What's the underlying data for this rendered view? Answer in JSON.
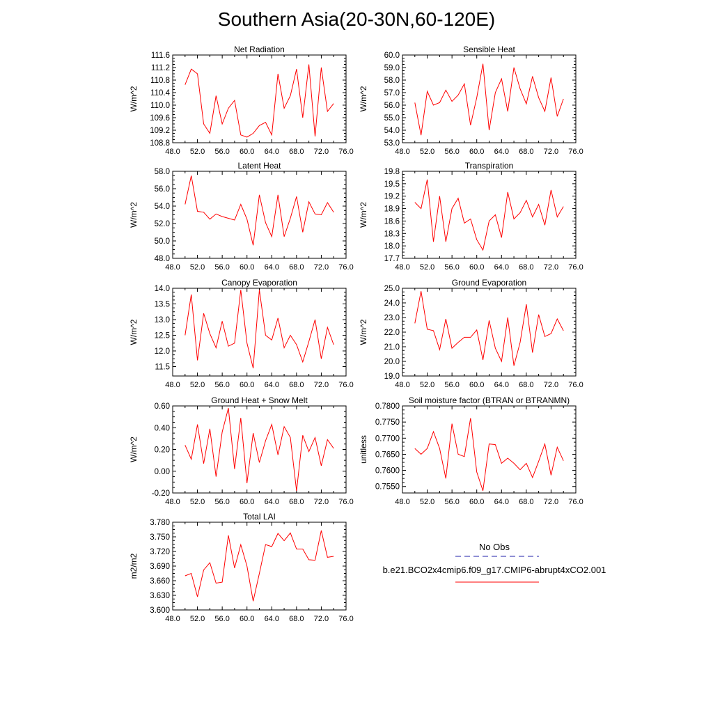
{
  "title": "Southern Asia(20-30N,60-120E)",
  "colors": {
    "series": "#ff0000",
    "obs": "#1f1fa8",
    "axis": "#000000"
  },
  "legend": {
    "obs_label": "No Obs",
    "case_label": "b.e21.BCO2x4cmip6.f09_g17.CMIP6-abrupt4xCO2.001",
    "obs_style": "dashed",
    "case_style": "solid"
  },
  "chart_data": [
    {
      "type": "line",
      "title": "Net Radiation",
      "xlabel": "",
      "ylabel": "W/m^2",
      "xlim": [
        48,
        76
      ],
      "ylim": [
        108.8,
        111.6
      ],
      "xticks": [
        "48.0",
        "52.0",
        "56.0",
        "60.0",
        "64.0",
        "68.0",
        "72.0",
        "76.0"
      ],
      "yticks": [
        "108.8",
        "109.2",
        "109.6",
        "110.0",
        "110.4",
        "110.8",
        "111.2",
        "111.6"
      ],
      "x": [
        50,
        51,
        52,
        53,
        54,
        55,
        56,
        57,
        58,
        59,
        60,
        61,
        62,
        63,
        64,
        65,
        66,
        67,
        68,
        69,
        70,
        71,
        72,
        73,
        74
      ],
      "values": [
        110.65,
        111.15,
        111.0,
        109.4,
        109.1,
        110.3,
        109.4,
        109.9,
        110.15,
        109.05,
        108.98,
        109.1,
        109.35,
        109.45,
        109.05,
        111.0,
        109.9,
        110.3,
        111.15,
        109.6,
        111.3,
        109.0,
        111.2,
        109.8,
        110.05
      ]
    },
    {
      "type": "line",
      "title": "Sensible Heat",
      "xlabel": "",
      "ylabel": "W/m^2",
      "xlim": [
        48,
        76
      ],
      "ylim": [
        53.0,
        60.0
      ],
      "xticks": [
        "48.0",
        "52.0",
        "56.0",
        "60.0",
        "64.0",
        "68.0",
        "72.0",
        "76.0"
      ],
      "yticks": [
        "53.0",
        "54.0",
        "55.0",
        "56.0",
        "57.0",
        "58.0",
        "59.0",
        "60.0"
      ],
      "x": [
        50,
        51,
        52,
        53,
        54,
        55,
        56,
        57,
        58,
        59,
        60,
        61,
        62,
        63,
        64,
        65,
        66,
        67,
        68,
        69,
        70,
        71,
        72,
        73,
        74
      ],
      "values": [
        56.2,
        53.6,
        57.1,
        56.0,
        56.2,
        57.2,
        56.3,
        56.8,
        57.7,
        54.4,
        56.6,
        59.3,
        54.0,
        57.0,
        58.1,
        55.5,
        59.0,
        57.3,
        56.1,
        58.3,
        56.6,
        55.5,
        58.2,
        55.1,
        56.5
      ]
    },
    {
      "type": "line",
      "title": "Latent Heat",
      "xlabel": "",
      "ylabel": "W/m^2",
      "xlim": [
        48,
        76
      ],
      "ylim": [
        48.0,
        58.0
      ],
      "xticks": [
        "48.0",
        "52.0",
        "56.0",
        "60.0",
        "64.0",
        "68.0",
        "72.0",
        "76.0"
      ],
      "yticks": [
        "48.0",
        "50.0",
        "52.0",
        "54.0",
        "56.0",
        "58.0"
      ],
      "x": [
        50,
        51,
        52,
        53,
        54,
        55,
        56,
        57,
        58,
        59,
        60,
        61,
        62,
        63,
        64,
        65,
        66,
        67,
        68,
        69,
        70,
        71,
        72,
        73,
        74
      ],
      "values": [
        54.2,
        57.5,
        53.4,
        53.3,
        52.5,
        53.1,
        52.8,
        52.6,
        52.4,
        54.2,
        52.5,
        49.5,
        55.3,
        52.1,
        50.5,
        55.3,
        50.5,
        52.6,
        55.1,
        51.0,
        54.5,
        53.1,
        53.0,
        54.4,
        53.3
      ]
    },
    {
      "type": "line",
      "title": "Transpiration",
      "xlabel": "",
      "ylabel": "W/m^2",
      "xlim": [
        48,
        76
      ],
      "ylim": [
        17.7,
        19.8
      ],
      "xticks": [
        "48.0",
        "52.0",
        "56.0",
        "60.0",
        "64.0",
        "68.0",
        "72.0",
        "76.0"
      ],
      "yticks": [
        "17.7",
        "18.0",
        "18.3",
        "18.6",
        "18.9",
        "19.2",
        "19.5",
        "19.8"
      ],
      "x": [
        50,
        51,
        52,
        53,
        54,
        55,
        56,
        57,
        58,
        59,
        60,
        61,
        62,
        63,
        64,
        65,
        66,
        67,
        68,
        69,
        70,
        71,
        72,
        73,
        74
      ],
      "values": [
        19.05,
        18.9,
        19.6,
        18.1,
        19.2,
        18.1,
        18.9,
        19.15,
        18.55,
        18.65,
        18.15,
        17.9,
        18.6,
        18.75,
        18.2,
        19.3,
        18.65,
        18.8,
        19.1,
        18.7,
        19.0,
        18.5,
        19.35,
        18.7,
        18.95
      ]
    },
    {
      "type": "line",
      "title": "Canopy Evaporation",
      "xlabel": "",
      "ylabel": "W/m^2",
      "xlim": [
        48,
        76
      ],
      "ylim": [
        11.2,
        14.0
      ],
      "xticks": [
        "48.0",
        "52.0",
        "56.0",
        "60.0",
        "64.0",
        "68.0",
        "72.0",
        "76.0"
      ],
      "yticks": [
        "11.5",
        "12.0",
        "12.5",
        "13.0",
        "13.5",
        "14.0"
      ],
      "x": [
        50,
        51,
        52,
        53,
        54,
        55,
        56,
        57,
        58,
        59,
        60,
        61,
        62,
        63,
        64,
        65,
        66,
        67,
        68,
        69,
        70,
        71,
        72,
        73,
        74
      ],
      "values": [
        12.5,
        13.8,
        11.7,
        13.2,
        12.55,
        12.1,
        12.95,
        12.15,
        12.25,
        13.95,
        12.25,
        11.45,
        13.95,
        12.5,
        12.35,
        13.05,
        12.1,
        12.5,
        12.2,
        11.65,
        12.3,
        13.0,
        11.75,
        12.75,
        12.2
      ]
    },
    {
      "type": "line",
      "title": "Ground Evaporation",
      "xlabel": "",
      "ylabel": "W/m^2",
      "xlim": [
        48,
        76
      ],
      "ylim": [
        19.0,
        25.0
      ],
      "xticks": [
        "48.0",
        "52.0",
        "56.0",
        "60.0",
        "64.0",
        "68.0",
        "72.0",
        "76.0"
      ],
      "yticks": [
        "19.0",
        "20.0",
        "21.0",
        "22.0",
        "23.0",
        "24.0",
        "25.0"
      ],
      "x": [
        50,
        51,
        52,
        53,
        54,
        55,
        56,
        57,
        58,
        59,
        60,
        61,
        62,
        63,
        64,
        65,
        66,
        67,
        68,
        69,
        70,
        71,
        72,
        73,
        74
      ],
      "values": [
        22.6,
        24.8,
        22.2,
        22.1,
        20.8,
        22.9,
        20.9,
        21.3,
        21.65,
        21.65,
        22.15,
        20.1,
        22.8,
        20.9,
        20.0,
        23.0,
        19.7,
        21.3,
        23.9,
        20.6,
        23.2,
        21.7,
        21.9,
        22.9,
        22.1
      ]
    },
    {
      "type": "line",
      "title": "Ground Heat + Snow Melt",
      "xlabel": "",
      "ylabel": "W/m^2",
      "xlim": [
        48,
        76
      ],
      "ylim": [
        -0.2,
        0.6
      ],
      "xticks": [
        "48.0",
        "52.0",
        "56.0",
        "60.0",
        "64.0",
        "68.0",
        "72.0",
        "76.0"
      ],
      "yticks": [
        "-0.20",
        "0.00",
        "0.20",
        "0.40",
        "0.60"
      ],
      "x": [
        50,
        51,
        52,
        53,
        54,
        55,
        56,
        57,
        58,
        59,
        60,
        61,
        62,
        63,
        64,
        65,
        66,
        67,
        68,
        69,
        70,
        71,
        72,
        73,
        74
      ],
      "values": [
        0.24,
        0.11,
        0.43,
        0.07,
        0.39,
        -0.05,
        0.36,
        0.58,
        0.02,
        0.49,
        -0.11,
        0.35,
        0.08,
        0.28,
        0.43,
        0.15,
        0.41,
        0.31,
        -0.18,
        0.33,
        0.18,
        0.31,
        0.05,
        0.29,
        0.21
      ]
    },
    {
      "type": "line",
      "title": "Soil moisture factor (BTRAN or BTRANMN)",
      "xlabel": "",
      "ylabel": "unitless",
      "xlim": [
        48,
        76
      ],
      "ylim": [
        0.753,
        0.78
      ],
      "xticks": [
        "48.0",
        "52.0",
        "56.0",
        "60.0",
        "64.0",
        "68.0",
        "72.0",
        "76.0"
      ],
      "yticks": [
        "0.7550",
        "0.7600",
        "0.7650",
        "0.7700",
        "0.7750",
        "0.7800"
      ],
      "x": [
        50,
        51,
        52,
        53,
        54,
        55,
        56,
        57,
        58,
        59,
        60,
        61,
        62,
        63,
        64,
        65,
        66,
        67,
        68,
        69,
        70,
        71,
        72,
        73,
        74
      ],
      "values": [
        0.7668,
        0.765,
        0.7668,
        0.772,
        0.7668,
        0.7575,
        0.7745,
        0.765,
        0.7643,
        0.7762,
        0.7595,
        0.7537,
        0.7682,
        0.768,
        0.7622,
        0.7638,
        0.7622,
        0.7602,
        0.7622,
        0.7578,
        0.7628,
        0.7682,
        0.7585,
        0.7672,
        0.763
      ]
    },
    {
      "type": "line",
      "title": "Total LAI",
      "xlabel": "",
      "ylabel": "m2/m2",
      "xlim": [
        48,
        76
      ],
      "ylim": [
        3.6,
        3.78
      ],
      "xticks": [
        "48.0",
        "52.0",
        "56.0",
        "60.0",
        "64.0",
        "68.0",
        "72.0",
        "76.0"
      ],
      "yticks": [
        "3.600",
        "3.630",
        "3.660",
        "3.690",
        "3.720",
        "3.750",
        "3.780"
      ],
      "x": [
        50,
        51,
        52,
        53,
        54,
        55,
        56,
        57,
        58,
        59,
        60,
        61,
        62,
        63,
        64,
        65,
        66,
        67,
        68,
        69,
        70,
        71,
        72,
        73,
        74
      ],
      "values": [
        3.67,
        3.675,
        3.627,
        3.682,
        3.697,
        3.655,
        3.657,
        3.753,
        3.686,
        3.734,
        3.69,
        3.618,
        3.675,
        3.734,
        3.73,
        3.757,
        3.742,
        3.758,
        3.725,
        3.725,
        3.703,
        3.702,
        3.763,
        3.708,
        3.71
      ]
    }
  ]
}
